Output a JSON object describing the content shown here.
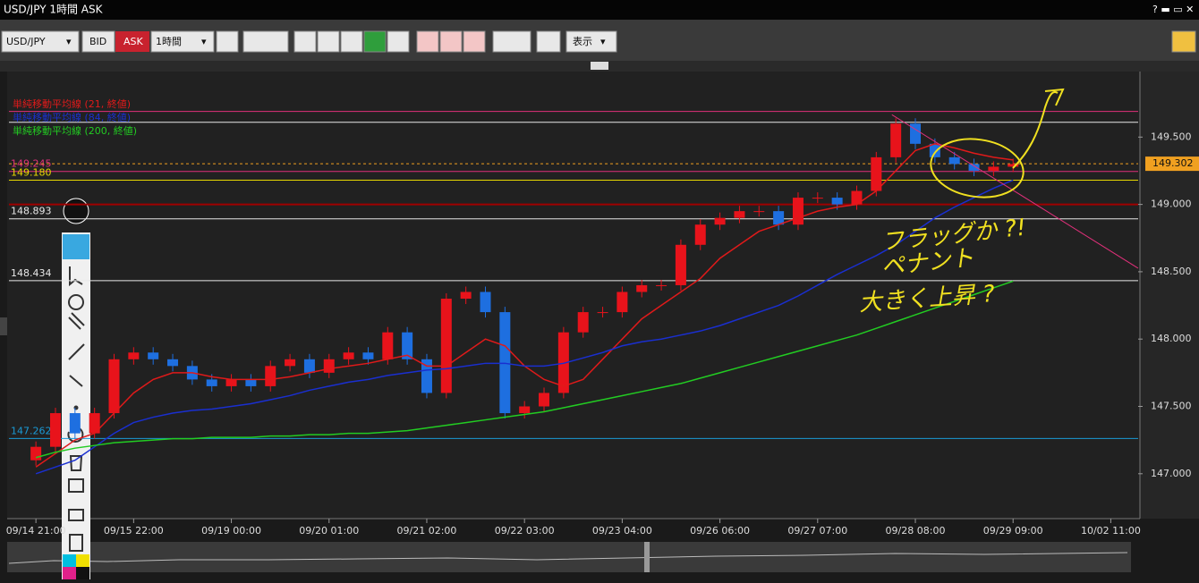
{
  "window": {
    "title": "USD/JPY 1時間 ASK"
  },
  "toolbar": {
    "symbol": "USD/JPY",
    "bid": "BID",
    "ask": "ASK",
    "timeframe": "1時間",
    "view": "表示"
  },
  "chart_data": {
    "type": "candlestick",
    "x": [
      0,
      5,
      10,
      15,
      20,
      25,
      30,
      35,
      40,
      45,
      50,
      55,
      60,
      65,
      70,
      75,
      80,
      85,
      90,
      95,
      100,
      105,
      110,
      115,
      120,
      125,
      130,
      135,
      140,
      145,
      150,
      155,
      160,
      165,
      170,
      175,
      180,
      185,
      190,
      195,
      200,
      205,
      210,
      215,
      220,
      225,
      230,
      235,
      240,
      245,
      250
    ],
    "open": [
      147.1,
      147.2,
      147.45,
      147.3,
      147.45,
      147.85,
      147.9,
      147.85,
      147.8,
      147.7,
      147.65,
      147.7,
      147.65,
      147.8,
      147.85,
      147.75,
      147.85,
      147.9,
      147.85,
      148.05,
      147.85,
      147.6,
      148.3,
      148.35,
      148.2,
      147.45,
      147.5,
      147.6,
      148.05,
      148.2,
      148.2,
      148.35,
      148.4,
      148.4,
      148.7,
      148.85,
      148.9,
      148.95,
      148.95,
      148.85,
      149.05,
      149.05,
      149.0,
      149.1,
      149.35,
      149.6,
      149.45,
      149.35,
      149.3,
      149.25,
      149.28
    ],
    "close": [
      147.2,
      147.45,
      147.3,
      147.45,
      147.85,
      147.9,
      147.85,
      147.8,
      147.7,
      147.65,
      147.7,
      147.65,
      147.8,
      147.85,
      147.75,
      147.85,
      147.9,
      147.85,
      148.05,
      147.85,
      147.6,
      148.3,
      148.35,
      148.2,
      147.45,
      147.5,
      147.6,
      148.05,
      148.2,
      148.2,
      148.35,
      148.4,
      148.4,
      148.7,
      148.85,
      148.9,
      148.95,
      148.95,
      148.85,
      149.05,
      149.05,
      149.0,
      149.1,
      149.35,
      149.6,
      149.45,
      149.35,
      149.3,
      149.25,
      149.28,
      149.3
    ],
    "up_color": "#e8131b",
    "down_color": "#1e6fe0",
    "series": [
      {
        "name": "単純移動平均線 (21, 終値)",
        "color": "#e01a1a",
        "values": [
          147.05,
          147.15,
          147.25,
          147.3,
          147.45,
          147.6,
          147.7,
          147.75,
          147.75,
          147.72,
          147.7,
          147.7,
          147.7,
          147.72,
          147.75,
          147.78,
          147.8,
          147.82,
          147.85,
          147.88,
          147.8,
          147.8,
          147.9,
          148.0,
          147.95,
          147.8,
          147.7,
          147.65,
          147.7,
          147.85,
          148.0,
          148.15,
          148.25,
          148.35,
          148.45,
          148.6,
          148.7,
          148.8,
          148.85,
          148.9,
          148.95,
          148.98,
          149.0,
          149.1,
          149.25,
          149.4,
          149.45,
          149.42,
          149.38,
          149.35,
          149.33
        ]
      },
      {
        "name": "単純移動平均線 (84, 終値)",
        "color": "#1a2fd0",
        "values": [
          147.0,
          147.05,
          147.1,
          147.2,
          147.3,
          147.38,
          147.42,
          147.45,
          147.47,
          147.48,
          147.5,
          147.52,
          147.55,
          147.58,
          147.62,
          147.65,
          147.68,
          147.7,
          147.73,
          147.75,
          147.77,
          147.78,
          147.8,
          147.82,
          147.82,
          147.8,
          147.8,
          147.82,
          147.86,
          147.9,
          147.95,
          147.98,
          148.0,
          148.03,
          148.06,
          148.1,
          148.15,
          148.2,
          148.25,
          148.32,
          148.4,
          148.48,
          148.55,
          148.62,
          148.7,
          148.8,
          148.9,
          148.98,
          149.05,
          149.12,
          149.18
        ]
      },
      {
        "name": "単純移動平均線 (200, 終値)",
        "color": "#22cc22",
        "values": [
          147.12,
          147.16,
          147.19,
          147.21,
          147.23,
          147.24,
          147.25,
          147.26,
          147.26,
          147.27,
          147.27,
          147.27,
          147.28,
          147.28,
          147.29,
          147.29,
          147.3,
          147.3,
          147.31,
          147.32,
          147.34,
          147.36,
          147.38,
          147.4,
          147.42,
          147.44,
          147.46,
          147.49,
          147.52,
          147.55,
          147.58,
          147.61,
          147.64,
          147.67,
          147.71,
          147.75,
          147.79,
          147.83,
          147.87,
          147.91,
          147.95,
          147.99,
          148.03,
          148.08,
          148.13,
          148.18,
          148.23,
          148.28,
          148.33,
          148.38,
          148.43
        ]
      }
    ],
    "hlines": [
      {
        "value": 149.69,
        "color": "#e0307a"
      },
      {
        "value": 149.61,
        "color": "#e8e8e8"
      },
      {
        "value": 149.245,
        "label": "149.245",
        "color": "#e0307a"
      },
      {
        "value": 149.18,
        "label": "149.180",
        "color": "#e8d800"
      },
      {
        "value": 149.0,
        "color": "#a00000"
      },
      {
        "value": 148.893,
        "label": "148.893",
        "color": "#e8e8e8"
      },
      {
        "value": 148.434,
        "label": "148.434",
        "color": "#e8e8e8"
      },
      {
        "value": 147.262,
        "label": "147.262",
        "color": "#1a9ad6"
      }
    ],
    "current": {
      "value": 149.302,
      "label": "149.302",
      "color": "#f0a020"
    },
    "trendline": {
      "x": [
        219,
        282
      ],
      "y": [
        149.666,
        148.526
      ],
      "color": "#e0307a"
    },
    "annotations": [
      "フラッグか ?!",
      "ペナント",
      "大きく上昇 ?"
    ],
    "xlim": [
      -6.9,
      282
    ],
    "ylim": [
      146.68,
      150.0
    ],
    "yticks": [
      {
        "value": 147,
        "label": "147.000"
      },
      {
        "value": 147.5,
        "label": "147.500"
      },
      {
        "value": 148,
        "label": "148.000"
      },
      {
        "value": 148.5,
        "label": "148.500"
      },
      {
        "value": 149,
        "label": "149.000"
      },
      {
        "value": 149.5,
        "label": "149.500"
      }
    ],
    "xticks": [
      {
        "value": 0,
        "label": "09/14 21:00"
      },
      {
        "value": 25,
        "label": "09/15 22:00"
      },
      {
        "value": 50,
        "label": "09/19 00:00"
      },
      {
        "value": 75,
        "label": "09/20 01:00"
      },
      {
        "value": 100,
        "label": "09/21 02:00"
      },
      {
        "value": 125,
        "label": "09/22 03:00"
      },
      {
        "value": 150,
        "label": "09/23 04:00"
      },
      {
        "value": 175,
        "label": "09/26 06:00"
      },
      {
        "value": 200,
        "label": "09/27 07:00"
      },
      {
        "value": 225,
        "label": "09/28 08:00"
      },
      {
        "value": 250,
        "label": "09/29 09:00"
      },
      {
        "value": 275,
        "label": "10/02 11:00"
      }
    ]
  }
}
